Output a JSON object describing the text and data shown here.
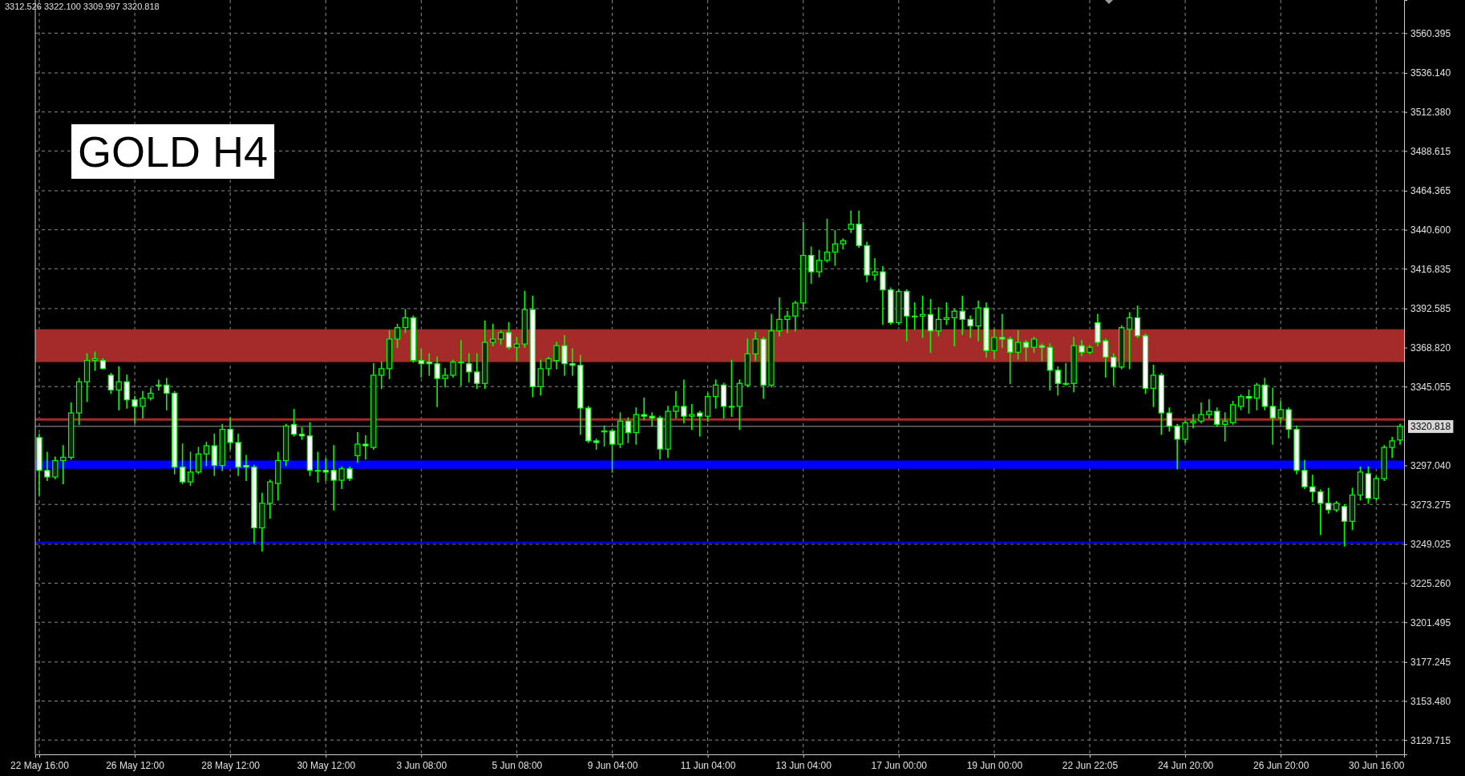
{
  "chart_data": {
    "type": "candlestick",
    "title": "GOLD H4",
    "annotations": [
      "3312.526 3322.100 3309.997 3320.818"
    ],
    "categories": [
      "22 May 16:00",
      null,
      null,
      null,
      null,
      null,
      null,
      null,
      null,
      null,
      null,
      null,
      "26 May 12:00",
      null,
      null,
      null,
      null,
      null,
      null,
      null,
      null,
      null,
      null,
      null,
      "28 May 12:00",
      null,
      null,
      null,
      null,
      null,
      null,
      null,
      null,
      null,
      null,
      null,
      "30 May 12:00",
      null,
      null,
      null,
      null,
      null,
      null,
      null,
      null,
      null,
      null,
      null,
      "3 Jun 08:00",
      null,
      null,
      null,
      null,
      null,
      null,
      null,
      null,
      null,
      null,
      null,
      "5 Jun 08:00",
      null,
      null,
      null,
      null,
      null,
      null,
      null,
      null,
      null,
      null,
      null,
      "9 Jun 04:00",
      null,
      null,
      null,
      null,
      null,
      null,
      null,
      null,
      null,
      null,
      null,
      "11 Jun 04:00",
      null,
      null,
      null,
      null,
      null,
      null,
      null,
      null,
      null,
      null,
      null,
      "13 Jun 04:00",
      null,
      null,
      null,
      null,
      null,
      null,
      null,
      null,
      null,
      null,
      null,
      "17 Jun 00:00",
      null,
      null,
      null,
      null,
      null,
      null,
      null,
      null,
      null,
      null,
      null,
      "19 Jun 00:00",
      null,
      null,
      null,
      null,
      null,
      null,
      null,
      null,
      null,
      null,
      null,
      "22 Jun 22:05",
      null,
      null,
      null,
      null,
      null,
      null,
      null,
      null,
      null,
      null,
      null,
      "24 Jun 20:00",
      null,
      null,
      null,
      null,
      null,
      null,
      null,
      null,
      null,
      null,
      null,
      "26 Jun 20:00",
      null,
      null,
      null,
      null,
      null,
      null,
      null,
      null,
      null,
      null,
      null,
      "30 Jun 16:00",
      null,
      null,
      null
    ],
    "ohlc": [
      [
        3314,
        3316,
        3279,
        3294
      ],
      [
        3294,
        3305,
        3288,
        3290
      ],
      [
        3290,
        3302,
        3289,
        3300
      ],
      [
        3300,
        3309,
        3286,
        3302
      ],
      [
        3302,
        3335,
        3301,
        3329
      ],
      [
        3329,
        3350,
        3322,
        3348
      ],
      [
        3348,
        3365,
        3336,
        3361
      ],
      [
        3361,
        3366,
        3355,
        3362
      ],
      [
        3361,
        3362,
        3356,
        3356
      ],
      [
        3352,
        3353,
        3341,
        3343
      ],
      [
        3343,
        3357,
        3331,
        3348
      ],
      [
        3348,
        3352,
        3332,
        3337
      ],
      [
        3337,
        3339,
        3323,
        3333
      ],
      [
        3333,
        3342,
        3326,
        3338
      ],
      [
        3338,
        3344,
        3337,
        3341
      ],
      [
        3346,
        3349,
        3343,
        3346
      ],
      [
        3346,
        3350,
        3331,
        3341
      ],
      [
        3341,
        3342,
        3292,
        3296
      ],
      [
        3296,
        3310,
        3286,
        3287
      ],
      [
        3287,
        3305,
        3285,
        3293
      ],
      [
        3293,
        3308,
        3292,
        3304
      ],
      [
        3304,
        3311,
        3297,
        3309
      ],
      [
        3309,
        3316,
        3291,
        3297
      ],
      [
        3297,
        3322,
        3294,
        3319
      ],
      [
        3319,
        3326,
        3307,
        3311
      ],
      [
        3311,
        3316,
        3291,
        3296
      ],
      [
        3297,
        3303,
        3288,
        3296
      ],
      [
        3296,
        3297,
        3250,
        3259
      ],
      [
        3259,
        3280,
        3245,
        3274
      ],
      [
        3274,
        3288,
        3265,
        3287
      ],
      [
        3286,
        3305,
        3276,
        3300
      ],
      [
        3300,
        3322,
        3297,
        3321
      ],
      [
        3322,
        3331,
        3315,
        3316
      ],
      [
        3316,
        3320,
        3313,
        3315
      ],
      [
        3315,
        3323,
        3291,
        3294
      ],
      [
        3294,
        3305,
        3287,
        3294
      ],
      [
        3294,
        3301,
        3288,
        3293
      ],
      [
        3294,
        3309,
        3270,
        3288
      ],
      [
        3288,
        3296,
        3283,
        3295
      ],
      [
        3295,
        3296,
        3288,
        3289
      ],
      [
        3303,
        3317,
        3299,
        3310
      ],
      [
        3310,
        3315,
        3301,
        3309
      ],
      [
        3308,
        3359,
        3307,
        3352
      ],
      [
        3352,
        3360,
        3344,
        3356
      ],
      [
        3356,
        3379,
        3350,
        3374
      ],
      [
        3374,
        3383,
        3369,
        3381
      ],
      [
        3381,
        3392,
        3378,
        3387
      ],
      [
        3387,
        3388,
        3360,
        3361
      ],
      [
        3361,
        3368,
        3351,
        3359
      ],
      [
        3360,
        3365,
        3352,
        3359
      ],
      [
        3359,
        3363,
        3333,
        3350
      ],
      [
        3350,
        3356,
        3345,
        3352
      ],
      [
        3352,
        3361,
        3351,
        3360
      ],
      [
        3360,
        3373,
        3346,
        3360
      ],
      [
        3359,
        3365,
        3348,
        3354
      ],
      [
        3354,
        3365,
        3344,
        3347
      ],
      [
        3347,
        3385,
        3344,
        3372
      ],
      [
        3372,
        3383,
        3370,
        3374
      ],
      [
        3374,
        3379,
        3371,
        3378
      ],
      [
        3378,
        3384,
        3368,
        3369
      ],
      [
        3369,
        3375,
        3361,
        3371
      ],
      [
        3371,
        3403,
        3369,
        3392
      ],
      [
        3392,
        3400,
        3339,
        3345
      ],
      [
        3345,
        3361,
        3340,
        3356
      ],
      [
        3356,
        3363,
        3352,
        3362
      ],
      [
        3361,
        3372,
        3356,
        3370
      ],
      [
        3370,
        3376,
        3352,
        3359
      ],
      [
        3359,
        3368,
        3352,
        3358
      ],
      [
        3358,
        3364,
        3316,
        3332
      ],
      [
        3332,
        3333,
        3311,
        3312
      ],
      [
        3312,
        3313,
        3307,
        3311
      ],
      [
        3318,
        3321,
        3309,
        3318
      ],
      [
        3318,
        3319,
        3293,
        3310
      ],
      [
        3310,
        3329,
        3308,
        3324
      ],
      [
        3324,
        3326,
        3311,
        3317
      ],
      [
        3317,
        3332,
        3310,
        3328
      ],
      [
        3328,
        3338,
        3325,
        3327
      ],
      [
        3327,
        3329,
        3321,
        3326
      ],
      [
        3326,
        3327,
        3301,
        3307
      ],
      [
        3307,
        3333,
        3302,
        3330
      ],
      [
        3330,
        3342,
        3326,
        3333
      ],
      [
        3333,
        3349,
        3323,
        3327
      ],
      [
        3327,
        3334,
        3319,
        3328
      ],
      [
        3329,
        3330,
        3315,
        3327
      ],
      [
        3327,
        3341,
        3324,
        3339
      ],
      [
        3339,
        3349,
        3332,
        3346
      ],
      [
        3346,
        3347,
        3326,
        3333
      ],
      [
        3333,
        3361,
        3327,
        3333
      ],
      [
        3333,
        3349,
        3319,
        3347
      ],
      [
        3346,
        3374,
        3345,
        3365
      ],
      [
        3365,
        3378,
        3361,
        3374
      ],
      [
        3374,
        3375,
        3338,
        3346
      ],
      [
        3346,
        3389,
        3345,
        3379
      ],
      [
        3379,
        3399,
        3376,
        3386
      ],
      [
        3386,
        3391,
        3378,
        3388
      ],
      [
        3388,
        3397,
        3379,
        3396
      ],
      [
        3396,
        3445,
        3392,
        3425
      ],
      [
        3425,
        3430,
        3408,
        3415
      ],
      [
        3415,
        3428,
        3412,
        3422
      ],
      [
        3422,
        3447,
        3421,
        3427
      ],
      [
        3427,
        3440,
        3419,
        3432
      ],
      [
        3432,
        3435,
        3429,
        3434
      ],
      [
        3441,
        3452,
        3439,
        3444
      ],
      [
        3444,
        3452,
        3430,
        3431
      ],
      [
        3431,
        3433,
        3409,
        3413
      ],
      [
        3413,
        3423,
        3410,
        3415
      ],
      [
        3415,
        3418,
        3383,
        3404
      ],
      [
        3404,
        3405,
        3383,
        3384
      ],
      [
        3384,
        3404,
        3383,
        3403
      ],
      [
        3403,
        3404,
        3373,
        3388
      ],
      [
        3388,
        3396,
        3380,
        3388
      ],
      [
        3388,
        3400,
        3375,
        3389
      ],
      [
        3389,
        3398,
        3366,
        3379
      ],
      [
        3379,
        3393,
        3376,
        3386
      ],
      [
        3386,
        3396,
        3383,
        3387
      ],
      [
        3387,
        3392,
        3370,
        3391
      ],
      [
        3391,
        3400,
        3377,
        3386
      ],
      [
        3386,
        3388,
        3375,
        3382
      ],
      [
        3382,
        3397,
        3373,
        3393
      ],
      [
        3393,
        3396,
        3363,
        3367
      ],
      [
        3367,
        3380,
        3362,
        3375
      ],
      [
        3375,
        3389,
        3369,
        3374
      ],
      [
        3374,
        3375,
        3347,
        3366
      ],
      [
        3366,
        3379,
        3362,
        3372
      ],
      [
        3372,
        3373,
        3361,
        3369
      ],
      [
        3369,
        3375,
        3366,
        3374
      ],
      [
        3370,
        3371,
        3361,
        3369
      ],
      [
        3369,
        3371,
        3343,
        3355
      ],
      [
        3355,
        3357,
        3340,
        3347
      ],
      [
        3347,
        3359,
        3346,
        3347
      ],
      [
        3347,
        3375,
        3342,
        3370
      ],
      [
        3370,
        3373,
        3364,
        3366
      ],
      [
        3366,
        3370,
        3365,
        3369
      ],
      [
        3384,
        3389,
        3370,
        3372
      ],
      [
        3373,
        3374,
        3351,
        3363
      ],
      [
        3363,
        3365,
        3346,
        3357
      ],
      [
        3357,
        3382,
        3356,
        3381
      ],
      [
        3380,
        3390,
        3356,
        3387
      ],
      [
        3387,
        3394,
        3375,
        3376
      ],
      [
        3376,
        3377,
        3341,
        3344
      ],
      [
        3344,
        3358,
        3333,
        3352
      ],
      [
        3352,
        3353,
        3316,
        3329
      ],
      [
        3329,
        3332,
        3318,
        3321
      ],
      [
        3321,
        3322,
        3295,
        3313
      ],
      [
        3313,
        3324,
        3311,
        3323
      ],
      [
        3323,
        3328,
        3320,
        3324
      ],
      [
        3324,
        3335,
        3323,
        3328
      ],
      [
        3328,
        3337,
        3326,
        3330
      ],
      [
        3330,
        3332,
        3321,
        3322
      ],
      [
        3322,
        3329,
        3312,
        3324
      ],
      [
        3323,
        3336,
        3322,
        3334
      ],
      [
        3333,
        3340,
        3331,
        3339
      ],
      [
        3339,
        3343,
        3329,
        3338
      ],
      [
        3338,
        3347,
        3331,
        3346
      ],
      [
        3346,
        3350,
        3331,
        3333
      ],
      [
        3333,
        3344,
        3310,
        3326
      ],
      [
        3326,
        3336,
        3323,
        3331
      ],
      [
        3331,
        3332,
        3314,
        3319
      ],
      [
        3319,
        3321,
        3292,
        3294
      ],
      [
        3294,
        3300,
        3283,
        3284
      ],
      [
        3284,
        3291,
        3275,
        3281
      ],
      [
        3281,
        3282,
        3255,
        3274
      ],
      [
        3274,
        3283,
        3268,
        3270
      ],
      [
        3270,
        3275,
        3269,
        3274
      ],
      [
        3272,
        3273,
        3248,
        3263
      ],
      [
        3263,
        3283,
        3258,
        3279
      ],
      [
        3279,
        3296,
        3276,
        3293
      ],
      [
        3292,
        3296,
        3274,
        3277
      ],
      [
        3277,
        3290,
        3276,
        3289
      ],
      [
        3289,
        3309,
        3288,
        3308
      ],
      [
        3308,
        3314,
        3302,
        3312
      ],
      [
        3312.526,
        3322.1,
        3309.997,
        3320.818
      ]
    ],
    "color": "#00ff00",
    "ylim": [
      3121,
      3580.6
    ],
    "yticks": [
      {
        "value": 3129.715,
        "label": "3129.715"
      },
      {
        "value": 3153.48,
        "label": "3153.480"
      },
      {
        "value": 3177.245,
        "label": "3177.245"
      },
      {
        "value": 3201.495,
        "label": "3201.495"
      },
      {
        "value": 3225.26,
        "label": "3225.260"
      },
      {
        "value": 3249.025,
        "label": "3249.025"
      },
      {
        "value": 3273.275,
        "label": "3273.275"
      },
      {
        "value": 3297.04,
        "label": "3297.040"
      },
      {
        "value": 3345.055,
        "label": "3345.055"
      },
      {
        "value": 3368.82,
        "label": "3368.820"
      },
      {
        "value": 3392.585,
        "label": "3392.585"
      },
      {
        "value": 3416.835,
        "label": "3416.835"
      },
      {
        "value": 3440.6,
        "label": "3440.600"
      },
      {
        "value": 3464.365,
        "label": "3464.365"
      },
      {
        "value": 3488.615,
        "label": "3488.615"
      },
      {
        "value": 3512.38,
        "label": "3512.380"
      },
      {
        "value": 3536.14,
        "label": "3536.140"
      },
      {
        "value": 3560.395,
        "label": "3560.395"
      }
    ],
    "grid": true,
    "bands": [
      {
        "axis": "y",
        "from": 3360,
        "to": 3380,
        "color": "#a52a2a"
      },
      {
        "axis": "y",
        "from": 3295,
        "to": 3300,
        "color": "#0000ff"
      }
    ],
    "ref_lines": [
      {
        "axis": "y",
        "value": 3325,
        "color": "#a52a2a"
      },
      {
        "axis": "y",
        "value": 3250,
        "color": "#0000cd"
      },
      {
        "axis": "y",
        "value": 3320.818,
        "label": "3320.818",
        "color": "#9a9a9a"
      }
    ]
  }
}
